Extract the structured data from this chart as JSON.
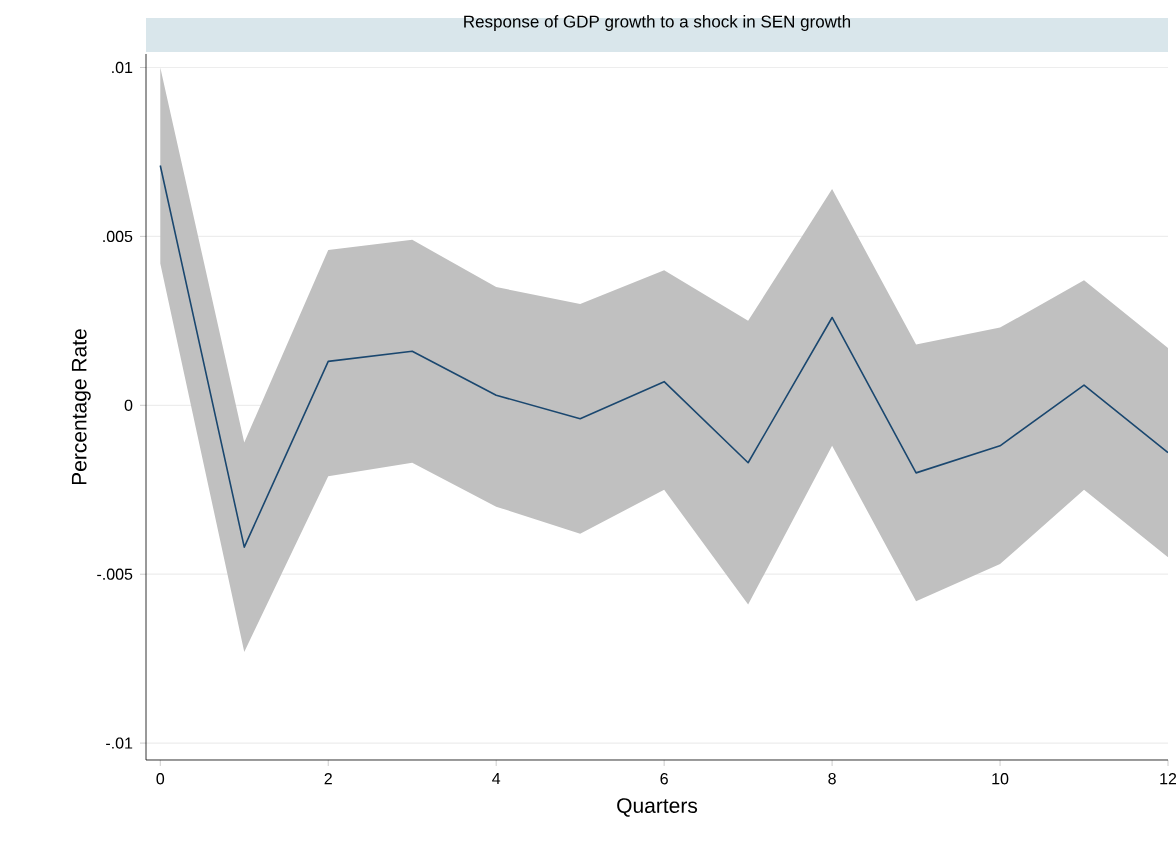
{
  "chart_data": {
    "type": "line",
    "title": "Response of GDP growth to a shock in SEN growth",
    "xlabel": "Quarters",
    "ylabel": "Percentage Rate",
    "x": [
      0,
      1,
      2,
      3,
      4,
      5,
      6,
      7,
      8,
      9,
      10,
      11,
      12
    ],
    "series": [
      {
        "color": "#1a476f",
        "values": [
          0.0071,
          -0.0042,
          0.0013,
          0.0016,
          0.0003,
          -0.0004,
          0.0007,
          -0.0017,
          0.0026,
          -0.002,
          -0.0012,
          0.0006,
          -0.0014
        ],
        "upper": [
          0.01,
          -0.0011,
          0.0046,
          0.0049,
          0.0035,
          0.003,
          0.004,
          0.0025,
          0.0064,
          0.0018,
          0.0023,
          0.0037,
          0.0017
        ],
        "lower": [
          0.0042,
          -0.0073,
          -0.0021,
          -0.0017,
          -0.003,
          -0.0038,
          -0.0025,
          -0.0059,
          -0.0012,
          -0.0058,
          -0.0047,
          -0.0025,
          -0.0045
        ]
      }
    ],
    "xlim": [
      -0.17,
      12
    ],
    "ylim": [
      -0.0105,
      0.0104
    ],
    "xticks": [
      0,
      2,
      4,
      6,
      8,
      10,
      12
    ],
    "yticks": [
      {
        "value": -0.01,
        "label": "-.01"
      },
      {
        "value": -0.005,
        "label": "-.005"
      },
      {
        "value": 0,
        "label": "0"
      },
      {
        "value": 0.005,
        "label": ".005"
      },
      {
        "value": 0.01,
        "label": ".01"
      }
    ],
    "grid": "y",
    "legend": false,
    "marker": "none",
    "line_style": "solid"
  }
}
